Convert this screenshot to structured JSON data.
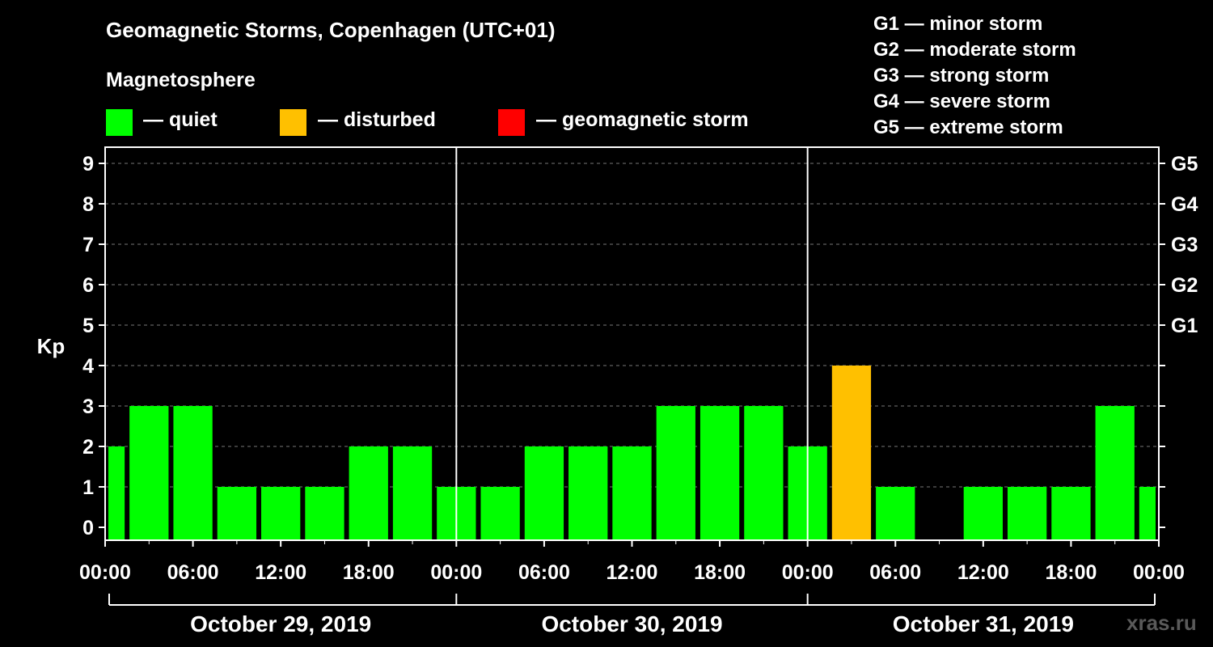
{
  "header": {
    "title": "Geomagnetic Storms, Copenhagen (UTC+01)"
  },
  "legend": {
    "title": "Magnetosphere",
    "items": [
      {
        "label": "— quiet",
        "color": "#00ff00"
      },
      {
        "label": "— disturbed",
        "color": "#ffc000"
      },
      {
        "label": "— geomagnetic storm",
        "color": "#ff0000"
      }
    ]
  },
  "storm_scale": [
    "G1 — minor storm",
    "G2 — moderate storm",
    "G3 — strong storm",
    "G4 — severe storm",
    "G5 — extreme storm"
  ],
  "watermark": "xras.ru",
  "chart_data": {
    "type": "bar",
    "ylabel": "Kp",
    "ylim": [
      0,
      9
    ],
    "yticks": [
      0,
      1,
      2,
      3,
      4,
      5,
      6,
      7,
      8,
      9
    ],
    "right_ticks": [
      {
        "value": 5,
        "label": "G1"
      },
      {
        "value": 6,
        "label": "G2"
      },
      {
        "value": 7,
        "label": "G3"
      },
      {
        "value": 8,
        "label": "G4"
      },
      {
        "value": 9,
        "label": "G5"
      }
    ],
    "x_tick_labels": [
      "00:00",
      "06:00",
      "12:00",
      "18:00",
      "00:00",
      "06:00",
      "12:00",
      "18:00",
      "00:00",
      "06:00",
      "12:00",
      "18:00",
      "00:00"
    ],
    "days": [
      "October 29, 2019",
      "October 30, 2019",
      "October 31, 2019"
    ],
    "values": [
      2,
      3,
      3,
      1,
      1,
      1,
      2,
      2,
      1,
      1,
      2,
      2,
      2,
      3,
      3,
      3,
      2,
      4,
      1,
      0,
      1,
      1,
      1,
      3,
      1
    ],
    "colors": {
      "quiet": "#00ff00",
      "disturbed": "#ffc000",
      "storm": "#ff0000"
    },
    "grid": "horizontal dashed"
  }
}
